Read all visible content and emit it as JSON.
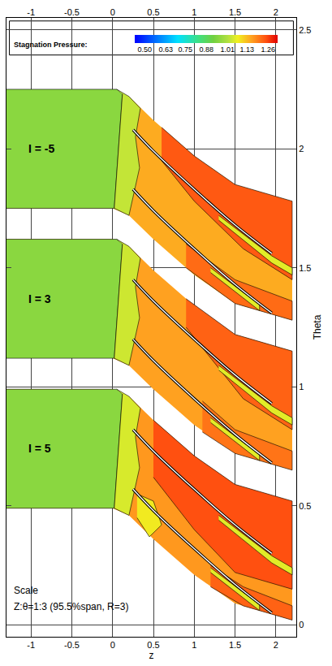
{
  "chart_data": {
    "type": "contour_regions",
    "x_label": "z",
    "y_label": "Theta",
    "xlim": [
      -1.3,
      2.25
    ],
    "xticks": [
      -1,
      -0.5,
      0,
      0.5,
      1,
      1.5,
      2
    ],
    "ylim": [
      -0.05,
      2.55
    ],
    "yticks": [
      0,
      0.5,
      1,
      1.5,
      2,
      2.5
    ],
    "grid": true,
    "colorbar": {
      "title": "Stagnation Pressure:",
      "range": [
        0.44,
        1.32
      ],
      "ticks": [
        {
          "value": 0.5,
          "label": "0.50"
        },
        0.63,
        0.75,
        0.88,
        1.01,
        1.13,
        1.26
      ]
    },
    "notes": [
      "Scale",
      "Z:θ=1:3 (95.5%span, R=3)"
    ],
    "panels": [
      {
        "label": "I = -5",
        "regions": [
          {
            "value": 1.15,
            "x": [
              -1.3,
              0,
              0.2,
              0.5,
              1.0,
              1.5,
              2.2,
              2.2,
              1.5,
              1.0,
              0.5,
              0.2,
              0,
              -1.3
            ],
            "y": [
              2.25,
              2.25,
              2.22,
              2.12,
              1.97,
              1.85,
              1.78,
              1.28,
              1.35,
              1.47,
              1.62,
              1.72,
              1.75,
              1.75
            ]
          },
          {
            "value": 0.96,
            "x": [
              -1.3,
              0.05,
              0.12,
              0.02,
              -1.3
            ],
            "y": [
              2.25,
              2.25,
              2.23,
              1.75,
              1.75
            ]
          },
          {
            "value": 1.03,
            "x": [
              0.05,
              0.2,
              0.34,
              0.28,
              0.33,
              0.2,
              0.02,
              0.12
            ],
            "y": [
              2.25,
              2.22,
              2.17,
              2.05,
              1.92,
              1.72,
              1.75,
              2.23
            ]
          },
          {
            "value": 1.24,
            "x": [
              0.6,
              1.0,
              1.5,
              2.2,
              2.2,
              1.6,
              1.0,
              0.6
            ],
            "y": [
              2.09,
              1.97,
              1.85,
              1.78,
              1.45,
              1.58,
              1.78,
              1.95
            ]
          },
          {
            "value": 1.22,
            "x": [
              0.9,
              1.5,
              2.2,
              2.2,
              1.5,
              0.9
            ],
            "y": [
              1.6,
              1.45,
              1.36,
              1.28,
              1.35,
              1.5
            ]
          },
          {
            "value": 1.06,
            "x": [
              1.3,
              1.95,
              2.2,
              2.2,
              1.95,
              1.3
            ],
            "y": [
              1.72,
              1.55,
              1.5,
              1.47,
              1.52,
              1.7
            ]
          },
          {
            "value": 1.06,
            "x": [
              1.2,
              1.8,
              1.8,
              1.2
            ],
            "y": [
              1.5,
              1.345,
              1.32,
              1.48
            ]
          }
        ],
        "blades": [
          {
            "x": [
              0.25,
              0.5,
              1.0,
              1.5,
              1.95
            ],
            "y": [
              2.08,
              1.99,
              1.83,
              1.68,
              1.56
            ]
          },
          {
            "x": [
              0.25,
              0.5,
              1.0,
              1.5,
              1.95
            ],
            "y": [
              1.83,
              1.74,
              1.58,
              1.43,
              1.31
            ]
          }
        ]
      },
      {
        "label": "I = 3",
        "regions": [
          {
            "value": 1.16,
            "x": [
              -1.3,
              0,
              0.2,
              0.5,
              1.0,
              1.5,
              2.2,
              2.2,
              1.5,
              1.0,
              0.5,
              0.2,
              0,
              -1.3
            ],
            "y": [
              1.62,
              1.62,
              1.59,
              1.49,
              1.34,
              1.22,
              1.15,
              0.65,
              0.72,
              0.84,
              0.99,
              1.09,
              1.12,
              1.12
            ]
          },
          {
            "value": 0.96,
            "x": [
              -1.3,
              0.05,
              0.12,
              0.02,
              -1.3
            ],
            "y": [
              1.62,
              1.62,
              1.6,
              1.12,
              1.12
            ]
          },
          {
            "value": 1.04,
            "x": [
              0.05,
              0.2,
              0.34,
              0.28,
              0.33,
              0.2,
              0.02,
              0.12
            ],
            "y": [
              1.62,
              1.59,
              1.54,
              1.42,
              1.29,
              1.09,
              1.12,
              1.6
            ]
          },
          {
            "value": 1.23,
            "x": [
              0.9,
              1.5,
              2.2,
              2.2,
              1.6,
              0.9
            ],
            "y": [
              1.37,
              1.22,
              1.15,
              0.82,
              0.95,
              1.25
            ]
          },
          {
            "value": 1.21,
            "x": [
              1.1,
              1.5,
              2.2,
              2.2,
              1.5,
              1.1
            ],
            "y": [
              0.94,
              0.82,
              0.73,
              0.65,
              0.72,
              0.81
            ]
          },
          {
            "value": 1.06,
            "x": [
              1.3,
              1.95,
              2.2,
              2.2,
              1.95,
              1.3
            ],
            "y": [
              1.09,
              0.92,
              0.87,
              0.84,
              0.89,
              1.07
            ]
          },
          {
            "value": 1.06,
            "x": [
              1.2,
              1.8,
              1.8,
              1.2
            ],
            "y": [
              0.87,
              0.715,
              0.69,
              0.85
            ]
          }
        ],
        "blades": [
          {
            "x": [
              0.25,
              0.5,
              1.0,
              1.5,
              1.95
            ],
            "y": [
              1.45,
              1.36,
              1.2,
              1.05,
              0.93
            ]
          },
          {
            "x": [
              0.25,
              0.5,
              1.0,
              1.5,
              1.95
            ],
            "y": [
              1.2,
              1.11,
              0.95,
              0.8,
              0.68
            ]
          }
        ]
      },
      {
        "label": "I = 5",
        "regions": [
          {
            "value": 1.17,
            "x": [
              -1.3,
              0,
              0.2,
              0.5,
              1.0,
              1.5,
              2.2,
              2.2,
              1.5,
              1.0,
              0.5,
              0.2,
              0,
              -1.3
            ],
            "y": [
              0.99,
              0.99,
              0.96,
              0.86,
              0.71,
              0.59,
              0.52,
              0.02,
              0.09,
              0.21,
              0.36,
              0.46,
              0.49,
              0.49
            ]
          },
          {
            "value": 0.96,
            "x": [
              -1.3,
              0.05,
              0.12,
              0.02,
              -1.3
            ],
            "y": [
              0.99,
              0.99,
              0.97,
              0.49,
              0.49
            ]
          },
          {
            "value": 1.05,
            "x": [
              0.05,
              0.2,
              0.34,
              0.28,
              0.33,
              0.2,
              0.02,
              0.12
            ],
            "y": [
              0.99,
              0.96,
              0.91,
              0.79,
              0.66,
              0.46,
              0.49,
              0.97
            ]
          },
          {
            "value": 1.08,
            "x": [
              0.3,
              0.5,
              0.6,
              0.45,
              0.3
            ],
            "y": [
              0.55,
              0.52,
              0.42,
              0.37,
              0.45
            ]
          },
          {
            "value": 1.25,
            "x": [
              0.5,
              1.0,
              1.5,
              2.2,
              2.2,
              1.5,
              1.0,
              0.5
            ],
            "y": [
              0.86,
              0.71,
              0.59,
              0.52,
              0.15,
              0.22,
              0.4,
              0.62
            ]
          },
          {
            "value": 1.23,
            "x": [
              1.2,
              1.6,
              2.2,
              2.2,
              1.6,
              1.2
            ],
            "y": [
              0.25,
              0.16,
              0.08,
              0.02,
              0.08,
              0.16
            ]
          },
          {
            "value": 1.06,
            "x": [
              1.3,
              1.95,
              2.2,
              2.2,
              1.95,
              1.3
            ],
            "y": [
              0.46,
              0.29,
              0.24,
              0.21,
              0.26,
              0.44
            ]
          },
          {
            "value": 1.06,
            "x": [
              1.2,
              1.8,
              1.8,
              1.2
            ],
            "y": [
              0.24,
              0.085,
              0.06,
              0.22
            ]
          }
        ],
        "blades": [
          {
            "x": [
              0.25,
              0.5,
              1.0,
              1.5,
              1.95
            ],
            "y": [
              0.82,
              0.73,
              0.57,
              0.42,
              0.3
            ]
          },
          {
            "x": [
              0.25,
              0.5,
              1.0,
              1.5,
              1.95
            ],
            "y": [
              0.57,
              0.48,
              0.32,
              0.17,
              0.05
            ]
          }
        ]
      }
    ]
  }
}
